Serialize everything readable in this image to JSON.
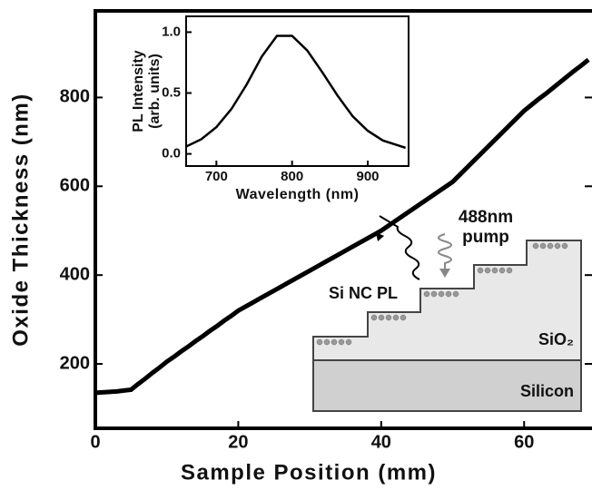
{
  "chart_data": [
    {
      "type": "line",
      "xlabel": "Sample Position (mm)",
      "ylabel": "Oxide Thickness (nm)",
      "x": [
        0,
        1,
        2,
        3,
        4,
        5,
        6,
        7,
        8,
        9,
        10,
        11,
        12,
        13,
        14,
        15,
        16,
        17,
        18,
        19,
        20,
        21,
        22,
        23,
        24,
        25,
        26,
        27,
        28,
        29,
        30,
        31,
        32,
        33,
        34,
        35,
        36,
        37,
        38,
        39,
        40,
        41,
        42,
        43,
        44,
        45,
        46,
        47,
        48,
        49,
        50,
        51,
        52,
        53,
        54,
        55,
        56,
        57,
        58,
        59,
        60,
        61,
        62,
        63,
        64,
        65,
        66,
        67,
        68,
        69
      ],
      "values": [
        135,
        136,
        137,
        138,
        140,
        142,
        155,
        167,
        180,
        192,
        205,
        216,
        228,
        239,
        251,
        262,
        274,
        285,
        297,
        308,
        320,
        329,
        338,
        347,
        356,
        365,
        374,
        383,
        392,
        401,
        410,
        419,
        428,
        437,
        446,
        455,
        464,
        473,
        482,
        491,
        500,
        511,
        522,
        533,
        544,
        555,
        566,
        577,
        588,
        599,
        610,
        626,
        642,
        658,
        674,
        690,
        706,
        722,
        738,
        754,
        770,
        783,
        796,
        808,
        821,
        834,
        847,
        860,
        872,
        885
      ],
      "color": "#000000",
      "xlim": [
        0,
        69.5
      ],
      "ylim": [
        55,
        995
      ],
      "xticks": [
        0,
        20,
        40,
        60
      ],
      "yticks": [
        200,
        400,
        600,
        800
      ],
      "annotations": [
        "488nm",
        "pump",
        "Si NC PL",
        "SiO₂",
        "Silicon"
      ]
    },
    {
      "type": "line",
      "xlabel": "Wavelength (nm)",
      "ylabel": [
        "PL Intensity",
        "(arb. units)"
      ],
      "x": [
        660,
        680,
        700,
        720,
        740,
        760,
        780,
        800,
        820,
        840,
        860,
        880,
        900,
        920,
        940,
        950
      ],
      "values": [
        0.06,
        0.12,
        0.22,
        0.37,
        0.57,
        0.8,
        0.97,
        0.97,
        0.85,
        0.67,
        0.48,
        0.31,
        0.19,
        0.11,
        0.07,
        0.05
      ],
      "color": "#000000",
      "xlim": [
        660,
        954
      ],
      "ylim": [
        -0.1,
        1.13
      ],
      "xticks": [
        700,
        800,
        900
      ],
      "yticks": [
        {
          "value": 0,
          "label": "0.0"
        },
        {
          "value": 0.5,
          "label": "0.5"
        },
        {
          "value": 1,
          "label": "1.0"
        }
      ]
    }
  ]
}
